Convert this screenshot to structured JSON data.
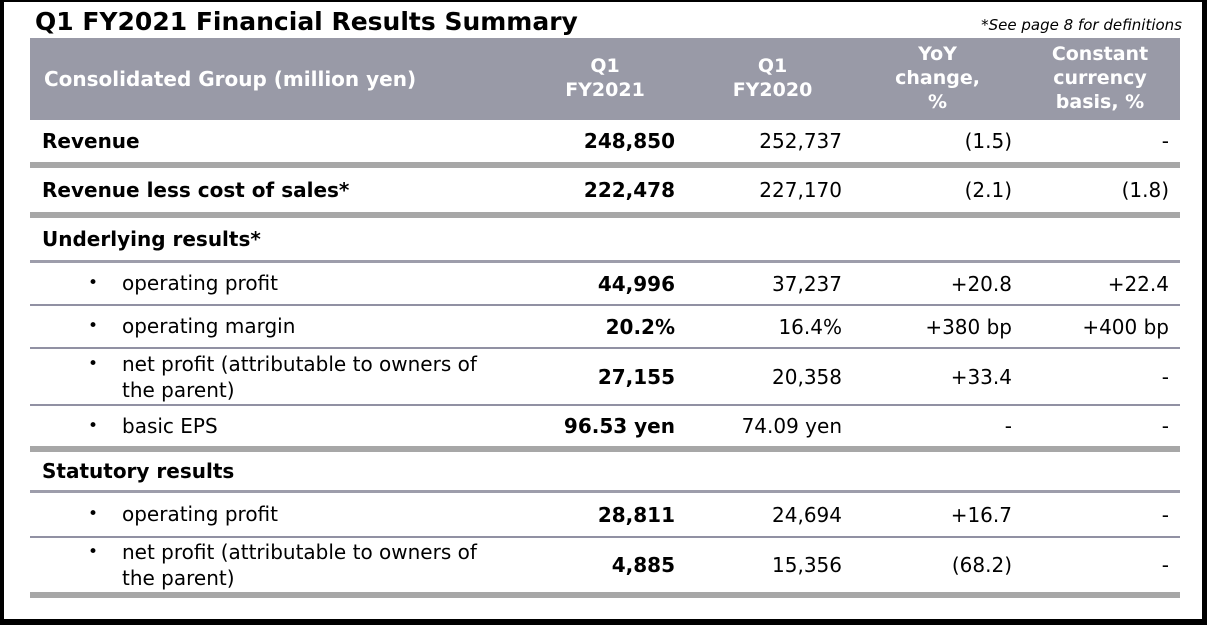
{
  "page": {
    "title": "Q1 FY2021 Financial Results Summary",
    "note": "*See page 8 for definitions"
  },
  "table": {
    "header": {
      "col0": "Consolidated Group (million yen)",
      "col1": "Q1\nFY2021",
      "col2": "Q1\nFY2020",
      "col3": "YoY\nchange,\n%",
      "col4": "Constant\ncurrency\nbasis, %"
    },
    "rows": [
      {
        "type": "main",
        "label": "Revenue",
        "fy2021": "248,850",
        "fy2020": "252,737",
        "yoy": "(1.5)",
        "cc": "-"
      },
      {
        "type": "main",
        "label": "Revenue less cost of sales*",
        "fy2021": "222,478",
        "fy2020": "227,170",
        "yoy": "(2.1)",
        "cc": "(1.8)"
      },
      {
        "type": "section",
        "label": "Underlying results*"
      },
      {
        "type": "bullet",
        "label": "operating profit",
        "fy2021": "44,996",
        "fy2020": "37,237",
        "yoy": "+20.8",
        "cc": "+22.4"
      },
      {
        "type": "bullet",
        "label": "operating margin",
        "fy2021": "20.2%",
        "fy2020": "16.4%",
        "yoy": "+380 bp",
        "cc": "+400 bp"
      },
      {
        "type": "bullet",
        "label": "net profit (attributable to owners of the parent)",
        "fy2021": "27,155",
        "fy2020": "20,358",
        "yoy": "+33.4",
        "cc": "-"
      },
      {
        "type": "bullet",
        "label": "basic EPS",
        "fy2021": "96.53 yen",
        "fy2020": "74.09 yen",
        "yoy": "-",
        "cc": "-"
      },
      {
        "type": "section",
        "label": "Statutory results"
      },
      {
        "type": "bullet",
        "label": "operating profit",
        "fy2021": "28,811",
        "fy2020": "24,694",
        "yoy": "+16.7",
        "cc": "-"
      },
      {
        "type": "bullet",
        "label": "net profit (attributable to owners of the parent)",
        "fy2021": "4,885",
        "fy2020": "15,356",
        "yoy": "(68.2)",
        "cc": "-"
      }
    ],
    "bullet_glyph": "•",
    "colors": {
      "header_bg": "#999aa7",
      "header_text": "#ffffff",
      "thick_divider": "#a7a7a7",
      "thin_divider": "#9191a3",
      "body_text": "#000000"
    }
  }
}
